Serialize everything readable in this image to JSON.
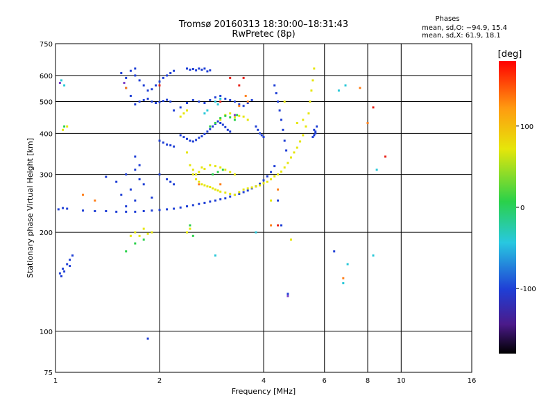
{
  "chart_data": {
    "type": "scatter",
    "title": "Tromsø 20160313 18:30:00–18:31:43",
    "subtitle": "RwPretec (8p)",
    "stats": {
      "heading": "Phases",
      "line1": "mean, sd,O: −94.9, 15.4",
      "line2": "mean, sd,X:  61.9, 18.1"
    },
    "xlabel": "Frequency [MHz]",
    "ylabel": "Stationary phase Virtual Height [km]",
    "x_scale": "log",
    "y_scale": "log",
    "xlim": [
      1,
      16
    ],
    "ylim": [
      75,
      750
    ],
    "x_ticks": [
      1,
      2,
      4,
      6,
      8,
      10,
      16
    ],
    "x_tick_labels": [
      "1",
      "2",
      "4",
      "6",
      "8",
      "10",
      "16"
    ],
    "y_ticks": [
      75,
      100,
      200,
      300,
      400,
      500,
      600,
      750
    ],
    "y_tick_labels": [
      "75",
      "100",
      "200",
      "300",
      "400",
      "500",
      "600",
      "750"
    ],
    "grid": true,
    "colorbar": {
      "label": "[deg]",
      "range": [
        -180,
        180
      ],
      "ticks": [
        100,
        0,
        -100
      ],
      "tick_labels": [
        "100",
        "0",
        "-100"
      ]
    },
    "series": [
      {
        "color": "#1f3fd6",
        "phase_deg": -95,
        "points": [
          [
            1.03,
            150
          ],
          [
            1.05,
            155
          ],
          [
            1.08,
            160
          ],
          [
            1.1,
            165
          ],
          [
            1.12,
            170
          ],
          [
            1.04,
            147
          ],
          [
            1.06,
            152
          ],
          [
            1.1,
            158
          ],
          [
            1.02,
            235
          ],
          [
            1.05,
            237
          ],
          [
            1.08,
            236
          ],
          [
            1.2,
            233
          ],
          [
            1.3,
            232
          ],
          [
            1.4,
            232
          ],
          [
            1.5,
            231
          ],
          [
            1.6,
            231
          ],
          [
            1.7,
            231
          ],
          [
            1.8,
            232
          ],
          [
            1.9,
            233
          ],
          [
            2.0,
            234
          ],
          [
            2.1,
            235
          ],
          [
            2.2,
            236
          ],
          [
            2.3,
            238
          ],
          [
            2.4,
            240
          ],
          [
            2.5,
            242
          ],
          [
            2.6,
            244
          ],
          [
            2.7,
            246
          ],
          [
            2.8,
            248
          ],
          [
            2.9,
            250
          ],
          [
            3.0,
            252
          ],
          [
            3.1,
            254
          ],
          [
            3.2,
            257
          ],
          [
            3.3,
            260
          ],
          [
            3.4,
            262
          ],
          [
            3.5,
            265
          ],
          [
            3.6,
            268
          ],
          [
            3.7,
            272
          ],
          [
            3.8,
            276
          ],
          [
            3.9,
            281
          ],
          [
            4.0,
            288
          ],
          [
            4.1,
            296
          ],
          [
            4.2,
            305
          ],
          [
            4.3,
            318
          ],
          [
            1.4,
            295
          ],
          [
            1.5,
            285
          ],
          [
            1.6,
            300
          ],
          [
            1.7,
            310
          ],
          [
            1.75,
            290
          ],
          [
            1.65,
            270
          ],
          [
            1.55,
            260
          ],
          [
            1.8,
            280
          ],
          [
            1.6,
            240
          ],
          [
            1.7,
            250
          ],
          [
            1.9,
            255
          ],
          [
            1.7,
            340
          ],
          [
            1.75,
            320
          ],
          [
            1.6,
            550
          ],
          [
            1.65,
            520
          ],
          [
            1.7,
            490
          ],
          [
            1.75,
            500
          ],
          [
            1.8,
            505
          ],
          [
            1.85,
            510
          ],
          [
            1.9,
            500
          ],
          [
            1.95,
            495
          ],
          [
            2.0,
            498
          ],
          [
            2.05,
            502
          ],
          [
            2.1,
            506
          ],
          [
            2.15,
            500
          ],
          [
            1.7,
            600
          ],
          [
            1.75,
            580
          ],
          [
            1.8,
            560
          ],
          [
            1.85,
            540
          ],
          [
            1.9,
            545
          ],
          [
            1.95,
            560
          ],
          [
            2.0,
            575
          ],
          [
            2.05,
            590
          ],
          [
            2.1,
            600
          ],
          [
            2.15,
            610
          ],
          [
            2.2,
            620
          ],
          [
            1.65,
            620
          ],
          [
            1.7,
            630
          ],
          [
            1.6,
            590
          ],
          [
            1.55,
            610
          ],
          [
            2.4,
            630
          ],
          [
            2.45,
            625
          ],
          [
            2.5,
            628
          ],
          [
            2.55,
            622
          ],
          [
            2.6,
            630
          ],
          [
            2.65,
            625
          ],
          [
            2.7,
            630
          ],
          [
            2.75,
            618
          ],
          [
            2.8,
            622
          ],
          [
            2.3,
            395
          ],
          [
            2.35,
            390
          ],
          [
            2.4,
            385
          ],
          [
            2.45,
            380
          ],
          [
            2.5,
            378
          ],
          [
            2.55,
            382
          ],
          [
            2.6,
            388
          ],
          [
            2.65,
            392
          ],
          [
            2.7,
            398
          ],
          [
            2.75,
            405
          ],
          [
            2.8,
            412
          ],
          [
            2.85,
            420
          ],
          [
            2.9,
            428
          ],
          [
            2.95,
            435
          ],
          [
            3.0,
            430
          ],
          [
            3.05,
            425
          ],
          [
            3.1,
            418
          ],
          [
            3.15,
            410
          ],
          [
            3.2,
            405
          ],
          [
            2.2,
            470
          ],
          [
            2.3,
            480
          ],
          [
            2.4,
            495
          ],
          [
            2.5,
            505
          ],
          [
            2.6,
            500
          ],
          [
            2.7,
            495
          ],
          [
            2.8,
            505
          ],
          [
            2.9,
            515
          ],
          [
            3.0,
            520
          ],
          [
            3.1,
            510
          ],
          [
            3.2,
            505
          ],
          [
            3.3,
            500
          ],
          [
            3.4,
            490
          ],
          [
            3.5,
            485
          ],
          [
            3.6,
            495
          ],
          [
            3.7,
            505
          ],
          [
            2.0,
            380
          ],
          [
            2.05,
            375
          ],
          [
            2.1,
            370
          ],
          [
            2.15,
            368
          ],
          [
            2.2,
            365
          ],
          [
            2.1,
            290
          ],
          [
            2.15,
            285
          ],
          [
            2.2,
            280
          ],
          [
            2.0,
            300
          ],
          [
            4.3,
            560
          ],
          [
            4.35,
            530
          ],
          [
            4.4,
            500
          ],
          [
            4.45,
            470
          ],
          [
            4.5,
            440
          ],
          [
            4.55,
            410
          ],
          [
            4.6,
            380
          ],
          [
            4.65,
            355
          ],
          [
            5.6,
            410
          ],
          [
            5.65,
            400
          ],
          [
            5.55,
            390
          ],
          [
            5.7,
            420
          ],
          [
            5.6,
            395
          ],
          [
            5.65,
            405
          ],
          [
            4.4,
            250
          ],
          [
            4.5,
            210
          ],
          [
            4.7,
            130
          ],
          [
            6.4,
            175
          ],
          [
            1.85,
            95
          ],
          [
            3.8,
            420
          ],
          [
            3.85,
            410
          ],
          [
            3.9,
            400
          ],
          [
            3.95,
            395
          ],
          [
            4.0,
            390
          ]
        ]
      },
      {
        "color": "#e6e60a",
        "phase_deg": 100,
        "points": [
          [
            2.4,
            350
          ],
          [
            2.45,
            320
          ],
          [
            2.5,
            300
          ],
          [
            2.55,
            290
          ],
          [
            2.6,
            285
          ],
          [
            2.65,
            280
          ],
          [
            2.7,
            278
          ],
          [
            2.75,
            276
          ],
          [
            2.8,
            275
          ],
          [
            2.85,
            272
          ],
          [
            2.9,
            270
          ],
          [
            2.95,
            268
          ],
          [
            3.0,
            266
          ],
          [
            3.1,
            264
          ],
          [
            3.2,
            262
          ],
          [
            3.3,
            260
          ],
          [
            3.4,
            265
          ],
          [
            3.5,
            270
          ],
          [
            3.6,
            272
          ],
          [
            3.7,
            274
          ],
          [
            3.8,
            276
          ],
          [
            3.9,
            278
          ],
          [
            4.0,
            282
          ],
          [
            4.1,
            285
          ],
          [
            4.2,
            290
          ],
          [
            4.3,
            296
          ],
          [
            4.4,
            300
          ],
          [
            4.5,
            306
          ],
          [
            4.6,
            315
          ],
          [
            4.7,
            325
          ],
          [
            4.8,
            338
          ],
          [
            4.9,
            350
          ],
          [
            5.0,
            362
          ],
          [
            5.1,
            378
          ],
          [
            5.2,
            395
          ],
          [
            5.3,
            420
          ],
          [
            5.4,
            460
          ],
          [
            5.45,
            500
          ],
          [
            5.5,
            540
          ],
          [
            5.55,
            580
          ],
          [
            5.6,
            630
          ],
          [
            2.5,
            310
          ],
          [
            2.55,
            300
          ],
          [
            2.6,
            305
          ],
          [
            2.65,
            315
          ],
          [
            2.7,
            312
          ],
          [
            2.8,
            320
          ],
          [
            2.9,
            318
          ],
          [
            3.0,
            315
          ],
          [
            3.1,
            310
          ],
          [
            3.2,
            305
          ],
          [
            3.3,
            300
          ],
          [
            1.7,
            200
          ],
          [
            1.75,
            195
          ],
          [
            1.8,
            205
          ],
          [
            1.85,
            198
          ],
          [
            1.9,
            200
          ],
          [
            1.65,
            195
          ],
          [
            2.4,
            200
          ],
          [
            2.45,
            205
          ],
          [
            3.1,
            455
          ],
          [
            3.2,
            460
          ],
          [
            3.3,
            448
          ],
          [
            3.4,
            452
          ],
          [
            3.5,
            450
          ],
          [
            3.6,
            440
          ],
          [
            3.0,
            440
          ],
          [
            1.05,
            410
          ],
          [
            1.08,
            420
          ],
          [
            2.3,
            450
          ],
          [
            2.35,
            460
          ],
          [
            2.4,
            470
          ],
          [
            4.2,
            250
          ],
          [
            5.0,
            430
          ],
          [
            5.2,
            440
          ],
          [
            4.6,
            500
          ],
          [
            4.8,
            190
          ]
        ]
      },
      {
        "color": "#2ad14a",
        "phase_deg": 30,
        "points": [
          [
            2.8,
            420
          ],
          [
            2.9,
            430
          ],
          [
            3.0,
            445
          ],
          [
            3.1,
            452
          ],
          [
            3.2,
            448
          ],
          [
            3.3,
            440
          ],
          [
            3.35,
            455
          ],
          [
            2.85,
            300
          ],
          [
            2.95,
            305
          ],
          [
            3.05,
            310
          ],
          [
            1.6,
            175
          ],
          [
            1.7,
            185
          ],
          [
            1.8,
            190
          ],
          [
            2.5,
            195
          ],
          [
            2.45,
            210
          ],
          [
            1.06,
            420
          ]
        ]
      },
      {
        "color": "#28c8d8",
        "phase_deg": 0,
        "points": [
          [
            2.9,
            500
          ],
          [
            3.0,
            510
          ],
          [
            2.95,
            490
          ],
          [
            2.7,
            460
          ],
          [
            2.75,
            470
          ],
          [
            3.8,
            200
          ],
          [
            2.9,
            170
          ],
          [
            6.8,
            140
          ],
          [
            7.0,
            160
          ],
          [
            8.3,
            170
          ],
          [
            8.5,
            310
          ],
          [
            6.6,
            540
          ],
          [
            6.9,
            560
          ],
          [
            1.04,
            580
          ],
          [
            1.06,
            560
          ]
        ]
      },
      {
        "color": "#ff7f1a",
        "phase_deg": 150,
        "points": [
          [
            1.6,
            550
          ],
          [
            3.4,
            485
          ],
          [
            3.6,
            500
          ],
          [
            3.0,
            280
          ],
          [
            2.6,
            280
          ],
          [
            4.4,
            270
          ],
          [
            4.2,
            210
          ],
          [
            6.8,
            145
          ],
          [
            7.6,
            550
          ],
          [
            8.0,
            430
          ],
          [
            1.2,
            260
          ],
          [
            1.3,
            250
          ],
          [
            3.55,
            520
          ]
        ]
      },
      {
        "color": "#e8231a",
        "phase_deg": 170,
        "points": [
          [
            3.2,
            590
          ],
          [
            3.4,
            560
          ],
          [
            3.5,
            590
          ],
          [
            8.3,
            480
          ],
          [
            9.0,
            340
          ],
          [
            4.4,
            210
          ],
          [
            3.0,
            500
          ],
          [
            2.0,
            560
          ]
        ]
      },
      {
        "color": "#7a3cc8",
        "phase_deg": -140,
        "points": [
          [
            4.7,
            128
          ],
          [
            1.03,
            570
          ],
          [
            3.3,
            455
          ],
          [
            1.58,
            570
          ]
        ]
      }
    ]
  }
}
